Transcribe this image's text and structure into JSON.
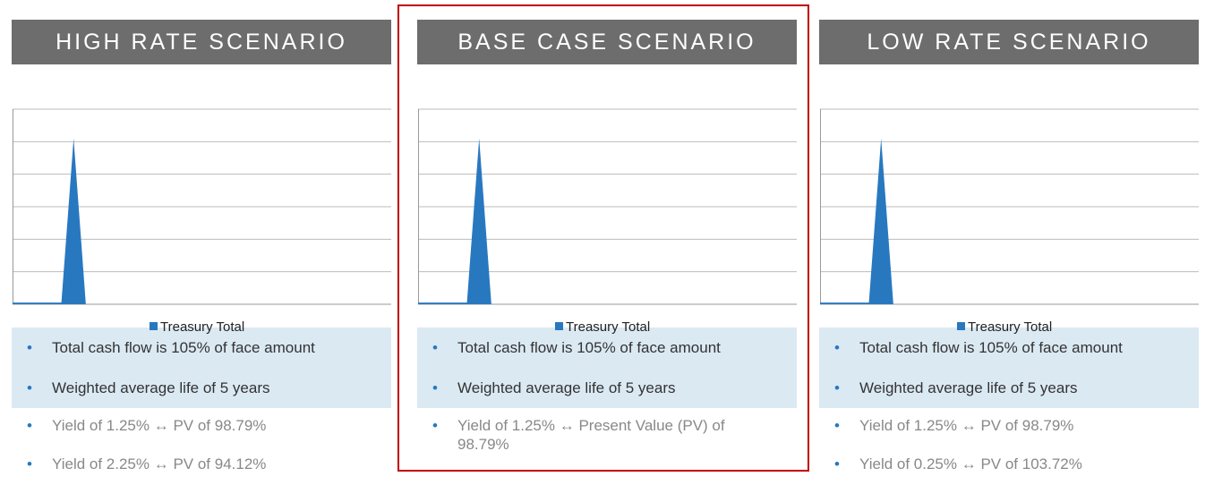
{
  "panels": [
    {
      "title": "HIGH RATE SCENARIO",
      "chart": {
        "type": "area",
        "series": [
          {
            "name": "Treasury Total",
            "color": "#2878c0",
            "values": [
              0.05,
              0.05,
              0.05,
              0.05,
              0.05,
              5.1,
              0,
              0,
              0,
              0,
              0,
              0,
              0,
              0,
              0,
              0,
              0,
              0,
              0,
              0,
              0,
              0,
              0,
              0,
              0,
              0,
              0,
              0,
              0,
              0,
              0,
              0
            ]
          }
        ],
        "ylim": [
          0,
          6
        ],
        "yticks": [
          1,
          2,
          3,
          4,
          5,
          6
        ],
        "grid": true
      },
      "highlighted": [
        "Total cash flow is 105% of face amount",
        "Weighted average life of 5 years"
      ],
      "notes": [
        "Yield of 1.25% ↔ PV of 98.79%",
        "Yield of 2.25% ↔ PV of 94.12%"
      ]
    },
    {
      "title": "BASE CASE SCENARIO",
      "chart": {
        "type": "area",
        "series": [
          {
            "name": "Treasury Total",
            "color": "#2878c0",
            "values": [
              0.05,
              0.05,
              0.05,
              0.05,
              0.05,
              5.1,
              0,
              0,
              0,
              0,
              0,
              0,
              0,
              0,
              0,
              0,
              0,
              0,
              0,
              0,
              0,
              0,
              0,
              0,
              0,
              0,
              0,
              0,
              0,
              0,
              0,
              0
            ]
          }
        ],
        "ylim": [
          0,
          6
        ],
        "yticks": [
          1,
          2,
          3,
          4,
          5,
          6
        ],
        "grid": true
      },
      "highlighted": [
        "Total cash flow is 105% of face amount",
        "Weighted average life of 5 years"
      ],
      "notes": [
        "Yield of 1.25% ↔ Present Value (PV) of 98.79%"
      ]
    },
    {
      "title": "LOW RATE SCENARIO",
      "chart": {
        "type": "area",
        "series": [
          {
            "name": "Treasury Total",
            "color": "#2878c0",
            "values": [
              0.05,
              0.05,
              0.05,
              0.05,
              0.05,
              5.1,
              0,
              0,
              0,
              0,
              0,
              0,
              0,
              0,
              0,
              0,
              0,
              0,
              0,
              0,
              0,
              0,
              0,
              0,
              0,
              0,
              0,
              0,
              0,
              0,
              0,
              0
            ]
          }
        ],
        "ylim": [
          0,
          6
        ],
        "yticks": [
          1,
          2,
          3,
          4,
          5,
          6
        ],
        "grid": true
      },
      "highlighted": [
        "Total cash flow is 105% of face amount",
        "Weighted average life of 5 years"
      ],
      "notes": [
        "Yield of 1.25% ↔ PV of 98.79%",
        "Yield of 0.25% ↔ PV of 103.72%"
      ]
    }
  ],
  "selected": 1
}
